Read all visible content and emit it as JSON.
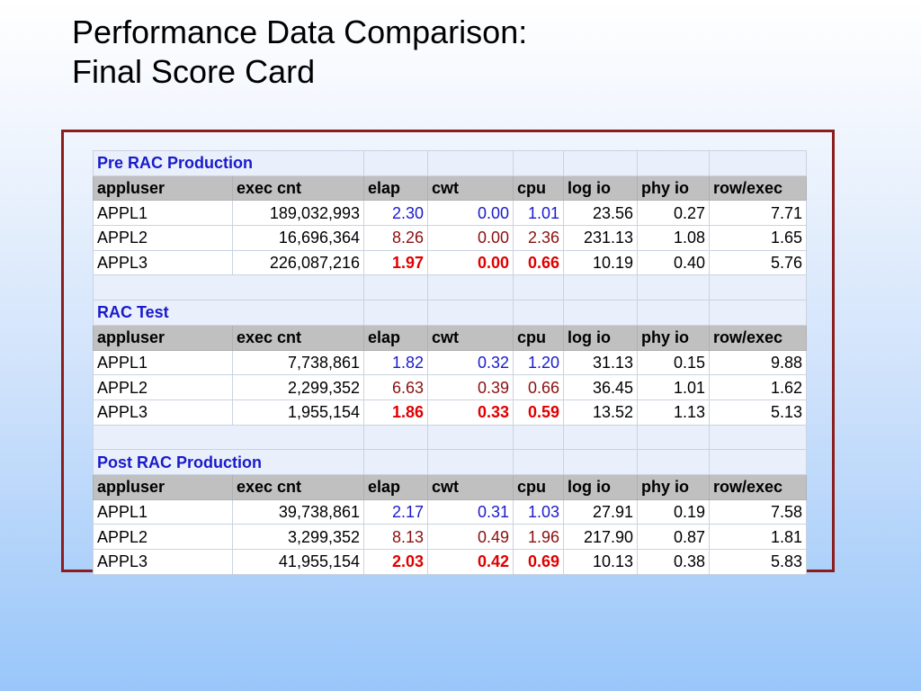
{
  "title": {
    "line1": "Performance Data Comparison:",
    "line2": "Final Score Card"
  },
  "columns": [
    "appluser",
    "exec cnt",
    "elap",
    "cwt",
    "cpu",
    "log io",
    "phy io",
    "row/exec"
  ],
  "colors": {
    "section_title": "#1a1acc",
    "appl1_timing": "#1a1acc",
    "appl2_timing": "#8b1010",
    "appl3_timing": "#e00000",
    "frame_border": "#8b1d1d",
    "header_bg": "#c0c0c0"
  },
  "sections": [
    {
      "title": "Pre RAC Production",
      "rows": [
        {
          "appluser": "APPL1",
          "exec_cnt": "189,032,993",
          "elap": "2.30",
          "cwt": "0.00",
          "cpu": "1.01",
          "log_io": "23.56",
          "phy_io": "0.27",
          "row_exec": "7.71"
        },
        {
          "appluser": "APPL2",
          "exec_cnt": "16,696,364",
          "elap": "8.26",
          "cwt": "0.00",
          "cpu": "2.36",
          "log_io": "231.13",
          "phy_io": "1.08",
          "row_exec": "1.65"
        },
        {
          "appluser": "APPL3",
          "exec_cnt": "226,087,216",
          "elap": "1.97",
          "cwt": "0.00",
          "cpu": "0.66",
          "log_io": "10.19",
          "phy_io": "0.40",
          "row_exec": "5.76"
        }
      ]
    },
    {
      "title": "RAC  Test",
      "rows": [
        {
          "appluser": "APPL1",
          "exec_cnt": "7,738,861",
          "elap": "1.82",
          "cwt": "0.32",
          "cpu": "1.20",
          "log_io": "31.13",
          "phy_io": "0.15",
          "row_exec": "9.88"
        },
        {
          "appluser": "APPL2",
          "exec_cnt": "2,299,352",
          "elap": "6.63",
          "cwt": "0.39",
          "cpu": "0.66",
          "log_io": "36.45",
          "phy_io": "1.01",
          "row_exec": "1.62"
        },
        {
          "appluser": "APPL3",
          "exec_cnt": "1,955,154",
          "elap": "1.86",
          "cwt": "0.33",
          "cpu": "0.59",
          "log_io": "13.52",
          "phy_io": "1.13",
          "row_exec": "5.13"
        }
      ]
    },
    {
      "title": "Post RAC  Production",
      "rows": [
        {
          "appluser": "APPL1",
          "exec_cnt": "39,738,861",
          "elap": "2.17",
          "cwt": "0.31",
          "cpu": "1.03",
          "log_io": "27.91",
          "phy_io": "0.19",
          "row_exec": "7.58"
        },
        {
          "appluser": "APPL2",
          "exec_cnt": "3,299,352",
          "elap": "8.13",
          "cwt": "0.49",
          "cpu": "1.96",
          "log_io": "217.90",
          "phy_io": "0.87",
          "row_exec": "1.81"
        },
        {
          "appluser": "APPL3",
          "exec_cnt": "41,955,154",
          "elap": "2.03",
          "cwt": "0.42",
          "cpu": "0.69",
          "log_io": "10.13",
          "phy_io": "0.38",
          "row_exec": "5.83"
        }
      ]
    }
  ]
}
